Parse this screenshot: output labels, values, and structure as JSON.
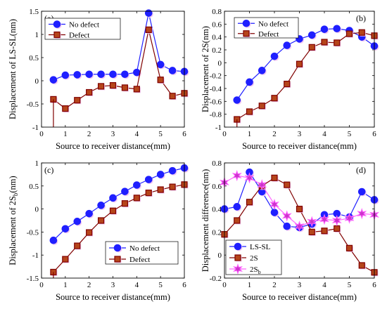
{
  "colors": {
    "blue": "#1f1fff",
    "maroon": "#800000",
    "brown_fill": "#b5451b",
    "pink": "#ff66ff",
    "purple_fill": "#cc33cc",
    "shadow": "#f2c8f2"
  },
  "chart_data": [
    {
      "type": "line",
      "panel": "(a)",
      "xlabel": "Source to receiver distance(mm)",
      "ylabel": "Displacement of LS-SL(nm)",
      "xlim": [
        0,
        6
      ],
      "ylim": [
        -1,
        1.5
      ],
      "xticks": [
        0,
        1,
        2,
        3,
        4,
        5,
        6
      ],
      "yticks": [
        -1,
        -0.5,
        0,
        0.5,
        1,
        1.5
      ],
      "ytick_labels": [
        "-1",
        "-0.5",
        "0",
        "0.5",
        "1",
        "1.5"
      ],
      "legend": "top-left",
      "series": [
        {
          "name": "No defect",
          "marker": "circle",
          "color": "#1f1fff",
          "x": [
            0.5,
            1,
            1.5,
            2,
            2.5,
            3,
            3.5,
            4,
            4.5,
            5,
            5.5,
            6
          ],
          "y": [
            0.02,
            0.12,
            0.13,
            0.14,
            0.14,
            0.14,
            0.14,
            0.18,
            1.46,
            0.35,
            0.22,
            0.2
          ]
        },
        {
          "name": "Defect",
          "marker": "square",
          "color": "#800000",
          "x": [
            0.5,
            1,
            1.5,
            2,
            2.5,
            3,
            3.5,
            4,
            4.5,
            5,
            5.5,
            6
          ],
          "y": [
            -0.4,
            -0.6,
            -0.42,
            -0.25,
            -0.12,
            -0.1,
            -0.15,
            -0.18,
            1.1,
            0.02,
            -0.33,
            -0.27
          ]
        }
      ]
    },
    {
      "type": "line",
      "panel": "(b)",
      "xlabel": "Source to receiver distance(mm)",
      "ylabel": "Displacement of 2S(nm)",
      "xlim": [
        0,
        6
      ],
      "ylim": [
        -1,
        0.8
      ],
      "xticks": [
        0,
        1,
        2,
        3,
        4,
        5,
        6
      ],
      "yticks": [
        -1,
        -0.8,
        -0.6,
        -0.4,
        -0.2,
        0,
        0.2,
        0.4,
        0.6,
        0.8
      ],
      "ytick_labels": [
        "-1",
        "-0.8",
        "-0.6",
        "-0.4",
        "-0.2",
        "0",
        "0.2",
        "0.4",
        "0.6",
        "0.8"
      ],
      "legend": "top-left",
      "series": [
        {
          "name": "No defect",
          "marker": "circle",
          "color": "#1f1fff",
          "x": [
            0.5,
            1,
            1.5,
            2,
            2.5,
            3,
            3.5,
            4,
            4.5,
            5,
            5.5,
            6
          ],
          "y": [
            -0.58,
            -0.3,
            -0.12,
            0.1,
            0.27,
            0.37,
            0.43,
            0.52,
            0.53,
            0.5,
            0.4,
            0.26
          ]
        },
        {
          "name": "Defect",
          "marker": "square",
          "color": "#800000",
          "x": [
            0.5,
            1,
            1.5,
            2,
            2.5,
            3,
            3.5,
            4,
            4.5,
            5,
            5.5,
            6
          ],
          "y": [
            -0.88,
            -0.76,
            -0.67,
            -0.55,
            -0.33,
            -0.02,
            0.24,
            0.32,
            0.31,
            0.45,
            0.47,
            0.42
          ]
        }
      ]
    },
    {
      "type": "line",
      "panel": "(c)",
      "xlabel": "Source to receiver distance(mm)",
      "ylabel": "Displacement of 2S",
      "ylabel_sub": "b",
      "ylabel_suffix": "(nm)",
      "xlim": [
        0,
        6
      ],
      "ylim": [
        -1.5,
        1
      ],
      "xticks": [
        0,
        1,
        2,
        3,
        4,
        5,
        6
      ],
      "yticks": [
        -1.5,
        -1,
        -0.5,
        0,
        0.5,
        1
      ],
      "ytick_labels": [
        "-1.5",
        "-1",
        "-0.5",
        "0",
        "0.5",
        "1"
      ],
      "legend": "center-right",
      "series": [
        {
          "name": "No defect",
          "marker": "circle",
          "color": "#1f1fff",
          "x": [
            0.5,
            1,
            1.5,
            2,
            2.5,
            3,
            3.5,
            4,
            4.5,
            5,
            5.5,
            6
          ],
          "y": [
            -0.68,
            -0.43,
            -0.27,
            -0.1,
            0.08,
            0.24,
            0.38,
            0.52,
            0.64,
            0.75,
            0.83,
            0.89
          ]
        },
        {
          "name": "Defect",
          "marker": "square",
          "color": "#800000",
          "x": [
            0.5,
            1,
            1.5,
            2,
            2.5,
            3,
            3.5,
            4,
            4.5,
            5,
            5.5,
            6
          ],
          "y": [
            -1.37,
            -1.09,
            -0.8,
            -0.51,
            -0.25,
            -0.04,
            0.12,
            0.24,
            0.35,
            0.42,
            0.48,
            0.53
          ]
        }
      ]
    },
    {
      "type": "line",
      "panel": "(d)",
      "xlabel": "Source to receiver distance(mm)",
      "ylabel": "Displacement difference(nm)",
      "xlim": [
        0,
        6
      ],
      "ylim": [
        -0.2,
        0.8
      ],
      "xticks": [
        0,
        1,
        2,
        3,
        4,
        5,
        6
      ],
      "yticks": [
        -0.2,
        0,
        0.2,
        0.4,
        0.6,
        0.8
      ],
      "ytick_labels": [
        "-0.2",
        "0",
        "0.2",
        "0.4",
        "0.6",
        "0.8"
      ],
      "legend": "bottom-left",
      "series": [
        {
          "name": "LS-SL",
          "marker": "circle",
          "color": "#1f1fff",
          "x": [
            0,
            0.5,
            1,
            1.5,
            2,
            2.5,
            3,
            3.5,
            4,
            4.5,
            5,
            5.5,
            6
          ],
          "y": [
            0.4,
            0.42,
            0.72,
            0.55,
            0.37,
            0.25,
            0.24,
            0.27,
            0.35,
            0.36,
            0.33,
            0.55,
            0.48
          ]
        },
        {
          "name": "2S",
          "marker": "square",
          "color": "#800000",
          "x": [
            0,
            0.5,
            1,
            1.5,
            2,
            2.5,
            3,
            3.5,
            4,
            4.5,
            5,
            5.5,
            6
          ],
          "y": [
            0.18,
            0.3,
            0.46,
            0.6,
            0.67,
            0.61,
            0.4,
            0.2,
            0.21,
            0.23,
            0.06,
            -0.09,
            -0.15
          ]
        },
        {
          "name": "2S",
          "name_sub": "b",
          "marker": "star",
          "color": "#ff66ff",
          "x": [
            0,
            0.5,
            1,
            1.5,
            2,
            2.5,
            3,
            3.5,
            4,
            4.5,
            5,
            5.5,
            6
          ],
          "y": [
            0.63,
            0.69,
            0.67,
            0.61,
            0.44,
            0.34,
            0.25,
            0.29,
            0.31,
            0.3,
            0.32,
            0.36,
            0.35
          ]
        }
      ]
    }
  ]
}
